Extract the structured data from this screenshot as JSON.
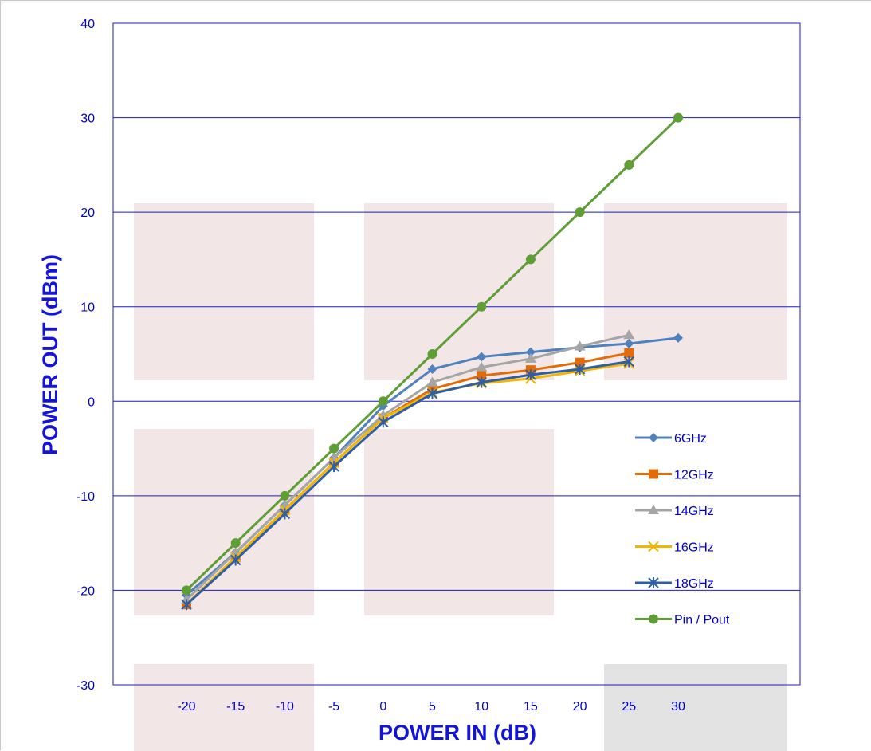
{
  "chart_data": {
    "type": "line",
    "title": "",
    "xlabel": "POWER IN (dB)",
    "ylabel": "POWER OUT (dBm)",
    "x": [
      -20,
      -15,
      -10,
      -5,
      0,
      5,
      10,
      15,
      20,
      25,
      30
    ],
    "x_tick_labels": [
      "-20",
      "-15",
      "-10",
      "-5",
      "0",
      "5",
      "10",
      "15",
      "20",
      "25",
      "30"
    ],
    "y_tick_labels": [
      "40",
      "30",
      "20",
      "10",
      "0",
      "-10",
      "-20",
      "-30"
    ],
    "ylim": [
      -30,
      40
    ],
    "grid": true,
    "legend_position": "right",
    "series": [
      {
        "name": "6GHz",
        "color": "#4f81bd",
        "marker": "diamond",
        "values": [
          -20.5,
          -16,
          -11,
          -6,
          -0.5,
          3.4,
          4.7,
          5.2,
          5.7,
          6.1,
          6.7
        ]
      },
      {
        "name": "12GHz",
        "color": "#e36c09",
        "marker": "square",
        "values": [
          -21.5,
          -16.5,
          -11.5,
          -6.5,
          -1.8,
          1.3,
          2.7,
          3.3,
          4.1,
          5.1,
          null
        ]
      },
      {
        "name": "14GHz",
        "color": "#a5a5a5",
        "marker": "triangle",
        "values": [
          -21,
          -16,
          -11,
          -6,
          -1.5,
          2.0,
          3.6,
          4.5,
          5.8,
          7.0,
          null
        ]
      },
      {
        "name": "16GHz",
        "color": "#f2b600",
        "marker": "x",
        "values": [
          -21.5,
          -16.5,
          -11.5,
          -6.5,
          -1.8,
          0.9,
          1.9,
          2.4,
          3.2,
          4.0,
          null
        ]
      },
      {
        "name": "18GHz",
        "color": "#2e5ea6",
        "marker": "star",
        "values": [
          -21.5,
          -16.8,
          -11.9,
          -6.9,
          -2.2,
          0.8,
          2.0,
          2.8,
          3.4,
          4.2,
          null
        ]
      },
      {
        "name": "Pin / Pout",
        "color": "#5e9e34",
        "marker": "circle",
        "values": [
          -20,
          -15,
          -10,
          -5,
          0,
          5,
          10,
          15,
          20,
          25,
          30
        ]
      }
    ]
  }
}
